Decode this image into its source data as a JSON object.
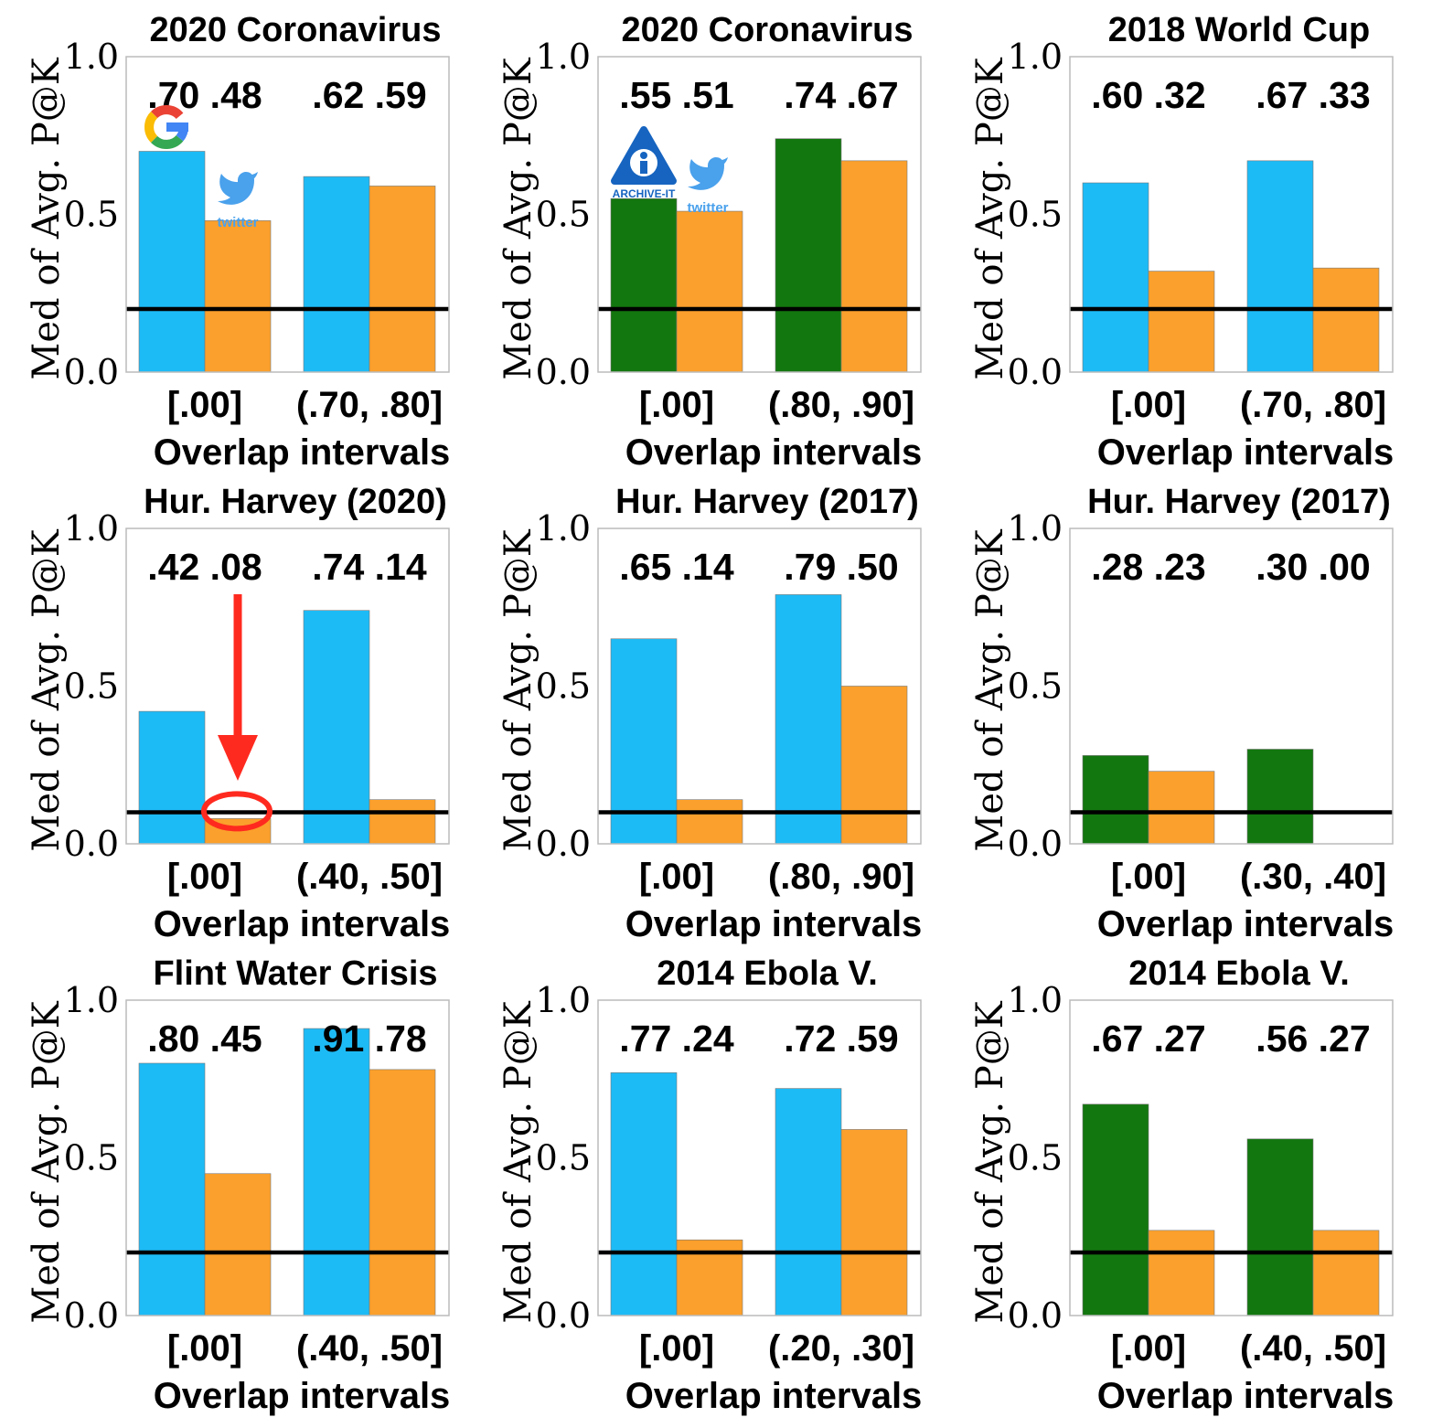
{
  "colors": {
    "google": "#1dbbf6",
    "twitter": "#fba02c",
    "archive_it": "#13770f",
    "highlight": "#ff2a1f"
  },
  "logos": {
    "google": "G",
    "archive_it": "ARCHIVE-IT",
    "twitter": "twitter"
  },
  "chart_data": [
    {
      "type": "bar",
      "title": "2020 Coronavirus",
      "xlabel": "Overlap intervals",
      "ylabel": "Med of Avg. P@K",
      "ylim": [
        0,
        1.0
      ],
      "yticks": [
        "0.0",
        "0.5",
        "1.0"
      ],
      "categories": [
        "[.00]",
        "(.70, .80]"
      ],
      "series": [
        {
          "values": [
            0.7,
            0.62
          ],
          "color_key": "google"
        },
        {
          "values": [
            0.48,
            0.59
          ],
          "color_key": "twitter"
        }
      ],
      "value_labels": [
        ".70 .48",
        ".62 .59"
      ],
      "baseline": 0.2
    },
    {
      "type": "bar",
      "title": "2020 Coronavirus",
      "xlabel": "Overlap intervals",
      "ylabel": "Med of Avg. P@K",
      "ylim": [
        0,
        1.0
      ],
      "yticks": [
        "0.0",
        "0.5",
        "1.0"
      ],
      "categories": [
        "[.00]",
        "(.80, .90]"
      ],
      "series": [
        {
          "values": [
            0.55,
            0.74
          ],
          "color_key": "archive_it"
        },
        {
          "values": [
            0.51,
            0.67
          ],
          "color_key": "twitter"
        }
      ],
      "value_labels": [
        ".55 .51",
        ".74 .67"
      ],
      "baseline": 0.2
    },
    {
      "type": "bar",
      "title": "2018 World Cup",
      "xlabel": "Overlap intervals",
      "ylabel": "Med of Avg. P@K",
      "ylim": [
        0,
        1.0
      ],
      "yticks": [
        "0.0",
        "0.5",
        "1.0"
      ],
      "categories": [
        "[.00]",
        "(.70, .80]"
      ],
      "series": [
        {
          "values": [
            0.6,
            0.67
          ],
          "color_key": "google"
        },
        {
          "values": [
            0.32,
            0.33
          ],
          "color_key": "twitter"
        }
      ],
      "value_labels": [
        ".60 .32",
        ".67 .33"
      ],
      "baseline": 0.2
    },
    {
      "type": "bar",
      "title": "Hur. Harvey (2020)",
      "xlabel": "Overlap intervals",
      "ylabel": "Med of Avg. P@K",
      "ylim": [
        0,
        1.0
      ],
      "yticks": [
        "0.0",
        "0.5",
        "1.0"
      ],
      "categories": [
        "[.00]",
        "(.40, .50]"
      ],
      "series": [
        {
          "values": [
            0.42,
            0.74
          ],
          "color_key": "google"
        },
        {
          "values": [
            0.08,
            0.14
          ],
          "color_key": "twitter"
        }
      ],
      "value_labels": [
        ".42 .08",
        ".74 .14"
      ],
      "baseline": 0.1
    },
    {
      "type": "bar",
      "title": "Hur. Harvey (2017)",
      "xlabel": "Overlap intervals",
      "ylabel": "Med of Avg. P@K",
      "ylim": [
        0,
        1.0
      ],
      "yticks": [
        "0.0",
        "0.5",
        "1.0"
      ],
      "categories": [
        "[.00]",
        "(.80, .90]"
      ],
      "series": [
        {
          "values": [
            0.65,
            0.79
          ],
          "color_key": "google"
        },
        {
          "values": [
            0.14,
            0.5
          ],
          "color_key": "twitter"
        }
      ],
      "value_labels": [
        ".65 .14",
        ".79 .50"
      ],
      "baseline": 0.1
    },
    {
      "type": "bar",
      "title": "Hur. Harvey (2017)",
      "xlabel": "Overlap intervals",
      "ylabel": "Med of Avg. P@K",
      "ylim": [
        0,
        1.0
      ],
      "yticks": [
        "0.0",
        "0.5",
        "1.0"
      ],
      "categories": [
        "[.00]",
        "(.30, .40]"
      ],
      "series": [
        {
          "values": [
            0.28,
            0.3
          ],
          "color_key": "archive_it"
        },
        {
          "values": [
            0.23,
            0.0
          ],
          "color_key": "twitter"
        }
      ],
      "value_labels": [
        ".28 .23",
        ".30 .00"
      ],
      "baseline": 0.1
    },
    {
      "type": "bar",
      "title": "Flint Water Crisis",
      "xlabel": "Overlap intervals",
      "ylabel": "Med of Avg. P@K",
      "ylim": [
        0,
        1.0
      ],
      "yticks": [
        "0.0",
        "0.5",
        "1.0"
      ],
      "categories": [
        "[.00]",
        "(.40, .50]"
      ],
      "series": [
        {
          "values": [
            0.8,
            0.91
          ],
          "color_key": "google"
        },
        {
          "values": [
            0.45,
            0.78
          ],
          "color_key": "twitter"
        }
      ],
      "value_labels": [
        ".80 .45",
        ".91 .78"
      ],
      "baseline": 0.2
    },
    {
      "type": "bar",
      "title": "2014 Ebola V.",
      "xlabel": "Overlap intervals",
      "ylabel": "Med of Avg. P@K",
      "ylim": [
        0,
        1.0
      ],
      "yticks": [
        "0.0",
        "0.5",
        "1.0"
      ],
      "categories": [
        "[.00]",
        "(.20, .30]"
      ],
      "series": [
        {
          "values": [
            0.77,
            0.72
          ],
          "color_key": "google"
        },
        {
          "values": [
            0.24,
            0.59
          ],
          "color_key": "twitter"
        }
      ],
      "value_labels": [
        ".77 .24",
        ".72 .59"
      ],
      "baseline": 0.2
    },
    {
      "type": "bar",
      "title": "2014 Ebola V.",
      "xlabel": "Overlap intervals",
      "ylabel": "Med of Avg. P@K",
      "ylim": [
        0,
        1.0
      ],
      "yticks": [
        "0.0",
        "0.5",
        "1.0"
      ],
      "categories": [
        "[.00]",
        "(.40, .50]"
      ],
      "series": [
        {
          "values": [
            0.67,
            0.56
          ],
          "color_key": "archive_it"
        },
        {
          "values": [
            0.27,
            0.27
          ],
          "color_key": "twitter"
        }
      ],
      "value_labels": [
        ".67 .27",
        ".56 .27"
      ],
      "baseline": 0.2
    }
  ],
  "annotations": {
    "google_logo_panel": 0,
    "archive_logo_panel": 1,
    "twitter_logo_panels": [
      0,
      1
    ],
    "highlight_panel": 3,
    "highlight_bar": {
      "category": 0,
      "series": 1
    }
  }
}
